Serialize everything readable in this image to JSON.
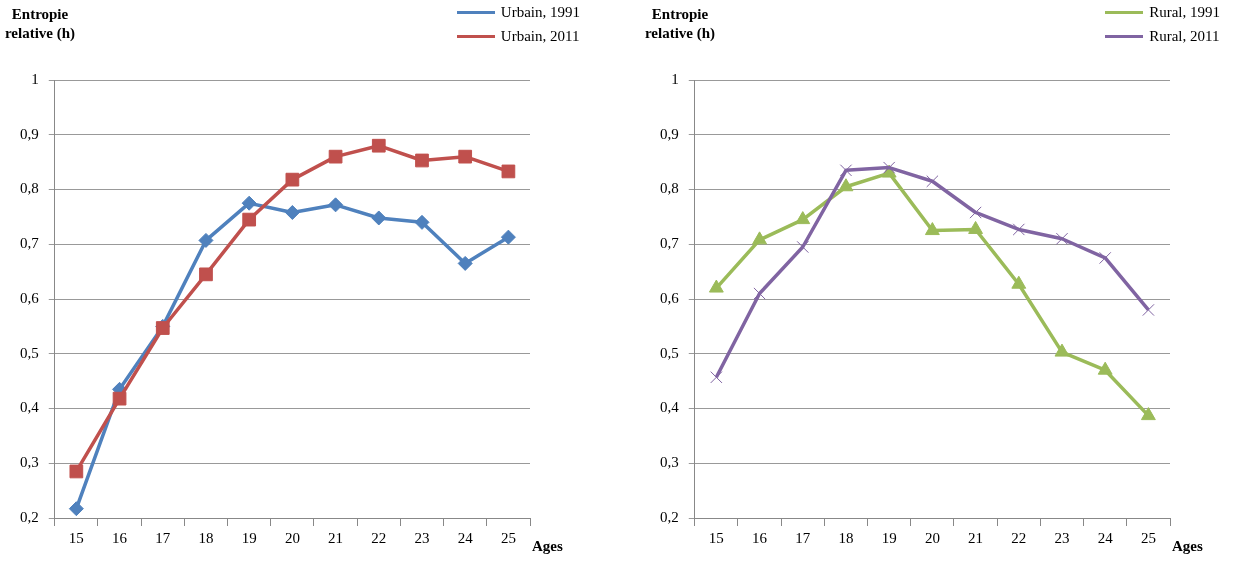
{
  "chart_data": [
    {
      "type": "line",
      "ylabel": "Entropie relative (h)",
      "xlabel": "Ages",
      "categories": [
        "15",
        "16",
        "17",
        "18",
        "19",
        "20",
        "21",
        "22",
        "23",
        "24",
        "25"
      ],
      "series": [
        {
          "name": "Urbain, 1991",
          "color": "#4f81bd",
          "marker": "diamond",
          "values": [
            0.217,
            0.435,
            0.55,
            0.707,
            0.775,
            0.758,
            0.772,
            0.748,
            0.74,
            0.665,
            0.713
          ]
        },
        {
          "name": "Urbain, 2011",
          "color": "#c0504d",
          "marker": "square",
          "values": [
            0.285,
            0.418,
            0.547,
            0.645,
            0.745,
            0.818,
            0.86,
            0.88,
            0.853,
            0.86,
            0.833
          ]
        }
      ],
      "ylim": [
        0.2,
        1
      ],
      "yticks": [
        {
          "value": 0.2,
          "label": "0,2"
        },
        {
          "value": 0.3,
          "label": "0,3"
        },
        {
          "value": 0.4,
          "label": "0,4"
        },
        {
          "value": 0.5,
          "label": "0,5"
        },
        {
          "value": 0.6,
          "label": "0,6"
        },
        {
          "value": 0.7,
          "label": "0,7"
        },
        {
          "value": 0.8,
          "label": "0,8"
        },
        {
          "value": 0.9,
          "label": "0,9"
        },
        {
          "value": 1,
          "label": "1"
        }
      ],
      "grid": "y",
      "legend": "top right",
      "line_style": "solid"
    },
    {
      "type": "line",
      "ylabel": "Entropie relative (h)",
      "xlabel": "Ages",
      "categories": [
        "15",
        "16",
        "17",
        "18",
        "19",
        "20",
        "21",
        "22",
        "23",
        "24",
        "25"
      ],
      "series": [
        {
          "name": "Rural, 1991",
          "color": "#9bbb59",
          "marker": "triangle",
          "values": [
            0.62,
            0.708,
            0.745,
            0.805,
            0.83,
            0.725,
            0.727,
            0.627,
            0.503,
            0.47,
            0.387
          ]
        },
        {
          "name": "Rural, 2011",
          "color": "#8064a2",
          "marker": "cross",
          "values": [
            0.457,
            0.61,
            0.695,
            0.835,
            0.84,
            0.815,
            0.758,
            0.727,
            0.71,
            0.675,
            0.58
          ]
        }
      ],
      "ylim": [
        0.2,
        1
      ],
      "yticks": [
        {
          "value": 0.2,
          "label": "0,2"
        },
        {
          "value": 0.3,
          "label": "0,3"
        },
        {
          "value": 0.4,
          "label": "0,4"
        },
        {
          "value": 0.5,
          "label": "0,5"
        },
        {
          "value": 0.6,
          "label": "0,6"
        },
        {
          "value": 0.7,
          "label": "0,7"
        },
        {
          "value": 0.8,
          "label": "0,8"
        },
        {
          "value": 0.9,
          "label": "0,9"
        },
        {
          "value": 1,
          "label": "1"
        }
      ],
      "grid": "y",
      "legend": "top right",
      "line_style": "solid"
    }
  ]
}
